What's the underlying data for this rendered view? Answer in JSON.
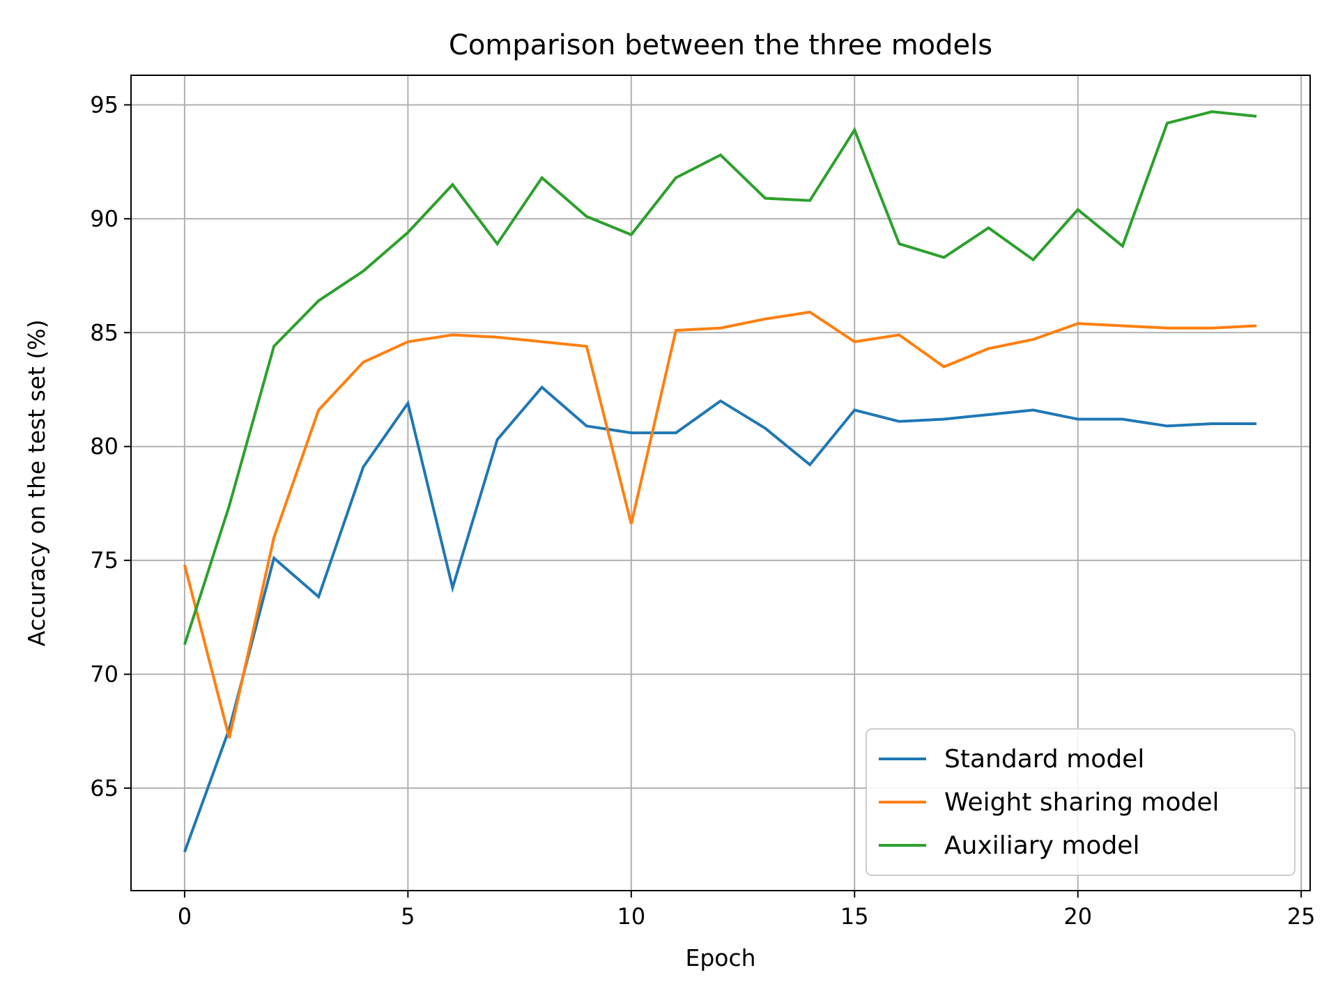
{
  "chart_data": {
    "type": "line",
    "title": "Comparison between the three models",
    "xlabel": "Epoch",
    "ylabel": "Accuracy on the test set (%)",
    "xlim": [
      -1.2,
      25.2
    ],
    "ylim": [
      60.5,
      96.3
    ],
    "xticks": [
      0,
      5,
      10,
      15,
      20,
      25
    ],
    "yticks": [
      65,
      70,
      75,
      80,
      85,
      90,
      95
    ],
    "grid": true,
    "legend_position": "lower right",
    "x": [
      0,
      1,
      2,
      3,
      4,
      5,
      6,
      7,
      8,
      9,
      10,
      11,
      12,
      13,
      14,
      15,
      16,
      17,
      18,
      19,
      20,
      21,
      22,
      23,
      24
    ],
    "series": [
      {
        "name": "Standard model",
        "color": "#1f77b4",
        "values": [
          62.2,
          67.6,
          75.1,
          73.4,
          79.1,
          81.9,
          73.8,
          80.3,
          82.6,
          80.9,
          80.6,
          80.6,
          82.0,
          80.8,
          79.2,
          81.6,
          81.1,
          81.2,
          81.4,
          81.6,
          81.2,
          81.2,
          80.9,
          81.0,
          81.0
        ]
      },
      {
        "name": "Weight sharing model",
        "color": "#ff7f0e",
        "values": [
          74.8,
          67.2,
          76.0,
          81.6,
          83.7,
          84.6,
          84.9,
          84.8,
          84.6,
          84.4,
          76.6,
          85.1,
          85.2,
          85.6,
          85.9,
          84.6,
          84.9,
          83.5,
          84.3,
          84.7,
          85.4,
          85.3,
          85.2,
          85.2,
          85.3
        ]
      },
      {
        "name": "Auxiliary model",
        "color": "#2ca02c",
        "values": [
          71.3,
          77.4,
          84.4,
          86.4,
          87.7,
          89.4,
          91.5,
          88.9,
          91.8,
          90.1,
          89.3,
          91.8,
          92.8,
          90.9,
          90.8,
          93.9,
          88.9,
          88.3,
          89.6,
          88.2,
          90.4,
          88.8,
          94.2,
          94.7,
          94.5
        ]
      }
    ]
  }
}
